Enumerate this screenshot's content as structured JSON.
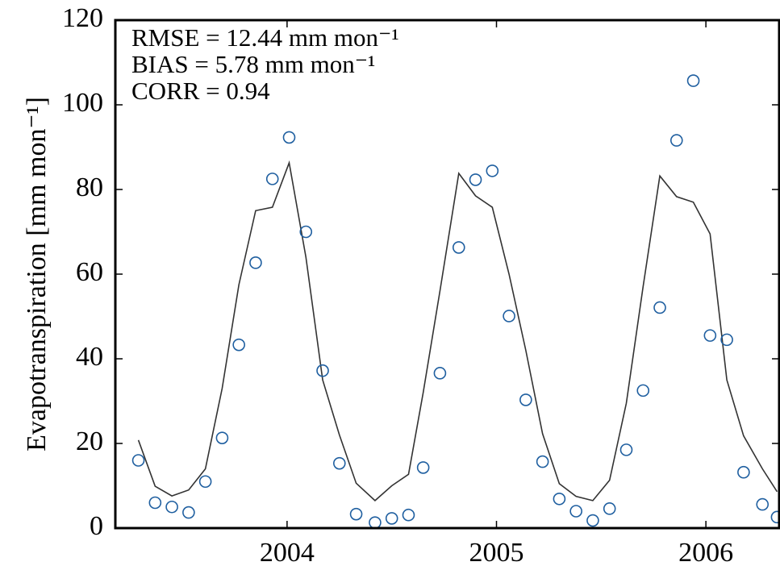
{
  "chart_data": {
    "type": "line",
    "ylabel": "Evapotranspiration [mm mon⁻¹]",
    "annotations": [
      "RMSE = 12.44 mm mon⁻¹",
      "BIAS = 5.78 mm mon⁻¹",
      "CORR = 0.94"
    ],
    "x": [
      2003.29,
      2003.37,
      2003.45,
      2003.53,
      2003.61,
      2003.69,
      2003.77,
      2003.85,
      2003.93,
      2004.01,
      2004.09,
      2004.17,
      2004.25,
      2004.33,
      2004.42,
      2004.5,
      2004.58,
      2004.65,
      2004.73,
      2004.82,
      2004.9,
      2004.98,
      2005.06,
      2005.14,
      2005.22,
      2005.3,
      2005.38,
      2005.46,
      2005.54,
      2005.62,
      2005.7,
      2005.78,
      2005.86,
      2005.94,
      2006.02,
      2006.1,
      2006.18,
      2006.27,
      2006.34
    ],
    "series": [
      {
        "type": "line",
        "color": "#333333",
        "values": [
          20.8,
          9.9,
          7.6,
          9,
          14,
          33,
          57.5,
          75,
          75.8,
          86.3,
          64,
          35,
          22,
          10.6,
          6.5,
          10,
          12.7,
          32,
          56,
          83.8,
          78.5,
          75.8,
          60,
          42,
          22.3,
          10.5,
          7.5,
          6.5,
          11.3,
          29.5,
          57,
          83.2,
          78.3,
          77,
          69.5,
          35,
          21.8,
          14,
          8.6
        ]
      },
      {
        "type": "scatter",
        "color": "#1f5fa0",
        "values": [
          16,
          6,
          5,
          3.7,
          11,
          21.3,
          43.3,
          62.7,
          82.5,
          92.3,
          70,
          37.2,
          15.3,
          3.3,
          1.3,
          2.3,
          3.1,
          14.3,
          36.6,
          66.3,
          82.3,
          84.4,
          50.1,
          30.3,
          15.7,
          6.9,
          4,
          1.8,
          4.6,
          18.5,
          32.5,
          52.1,
          91.6,
          105.7,
          45.5,
          44.5,
          13.2,
          5.6,
          2.6
        ]
      }
    ],
    "xlim": [
      2003.18,
      2006.35
    ],
    "xticks": [
      2004,
      2005,
      2006
    ],
    "ylim": [
      0,
      120
    ],
    "yticks": [
      0,
      20,
      40,
      60,
      80,
      100,
      120
    ]
  }
}
